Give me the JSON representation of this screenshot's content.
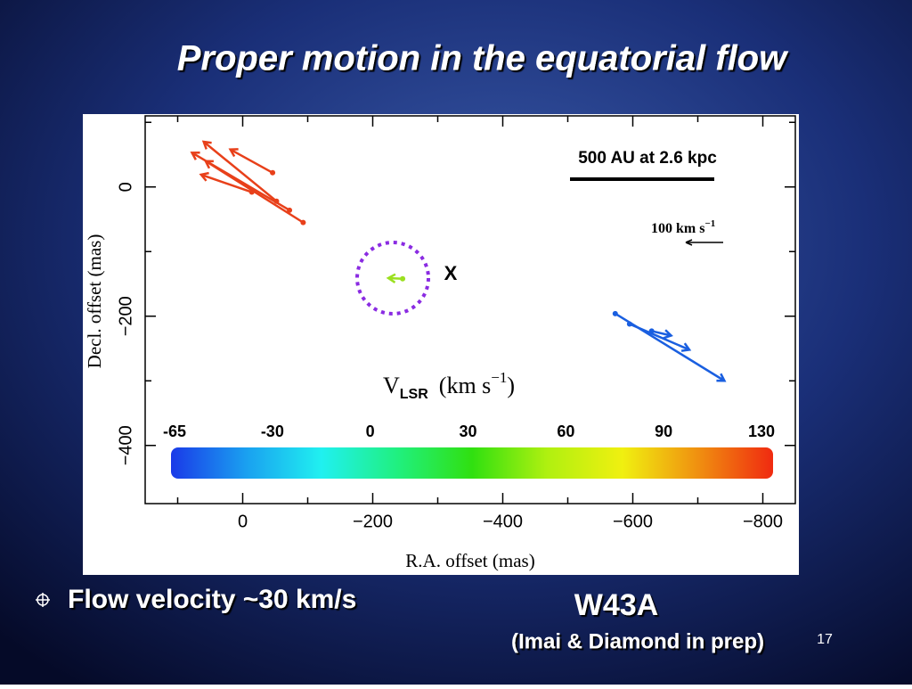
{
  "slide": {
    "title": "Proper motion in the equatorial flow",
    "bullet": "Flow velocity ~30 km/s",
    "caption": "W43A",
    "citation": "(Imai & Diamond in prep)",
    "page_number": "17"
  },
  "chart_data": {
    "type": "vector",
    "x_label": "R.A. offset (mas)",
    "y_label": "Decl. offset (mas)",
    "xlim": [
      150,
      -850
    ],
    "ylim": [
      -490,
      110
    ],
    "xticks": [
      0,
      {
        "value": -200,
        "label": "−200"
      },
      {
        "value": -400,
        "label": "−400"
      },
      {
        "value": -600,
        "label": "−600"
      },
      {
        "value": -800,
        "label": "−800"
      }
    ],
    "xminor": [
      100,
      -100,
      -300,
      -500,
      -700
    ],
    "yticks": [
      0,
      {
        "value": -200,
        "label": "−200"
      },
      {
        "value": -400,
        "label": "−400"
      }
    ],
    "yminor": [
      100,
      -100,
      -300
    ],
    "groups": [
      {
        "color": "#e8401a",
        "x": [
          -46,
          -72,
          -93,
          -52,
          -14
        ],
        "y": [
          22,
          -36,
          -55,
          -22,
          -8
        ],
        "x_end": [
          19,
          78,
          57,
          60,
          64
        ],
        "y_end": [
          58,
          53,
          40,
          70,
          19
        ]
      },
      {
        "color": "#9be020",
        "x": [
          -246
        ],
        "y": [
          -142
        ],
        "x_end": [
          -224
        ],
        "y_end": [
          -141
        ]
      },
      {
        "color": "#1a5fe0",
        "x": [
          -573,
          -595,
          -629
        ],
        "y": [
          -196,
          -212,
          -223
        ],
        "x_end": [
          -741,
          -687,
          -659
        ],
        "y_end": [
          -300,
          -252,
          -230
        ]
      }
    ],
    "marker_label": "X",
    "scale_bar": "500 AU at 2.6 kpc",
    "velocity_scale": {
      "number": "100",
      "unit": "km s",
      "exponent": "−1"
    },
    "colorbar": {
      "title": "V",
      "title_sub": "LSR",
      "title_unit": "(km s",
      "title_exp": "−1",
      "title_close": ")",
      "ticks": [
        -65,
        -30,
        0,
        30,
        60,
        90,
        130
      ],
      "colors": [
        "#1a3ae8",
        "#1aa0f0",
        "#20f0f0",
        "#20f080",
        "#30e010",
        "#b0f010",
        "#f0f010",
        "#f09010",
        "#f02a10"
      ]
    }
  }
}
